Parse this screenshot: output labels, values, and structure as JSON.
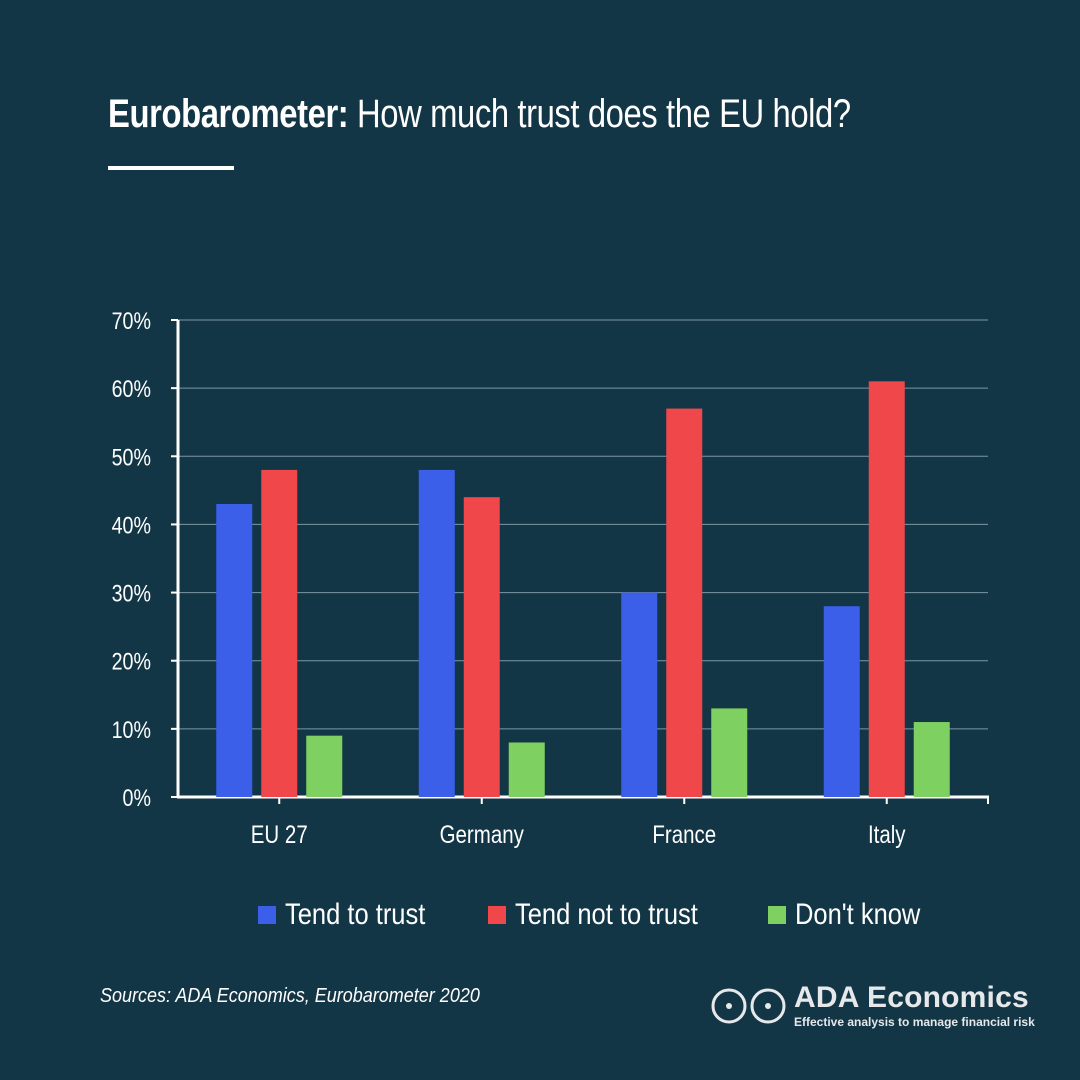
{
  "header": {
    "title_bold": "Eurobarometer:",
    "title_rest": " How much trust does the EU hold?"
  },
  "chart_data": {
    "type": "bar",
    "categories": [
      "EU 27",
      "Germany",
      "France",
      "Italy"
    ],
    "series": [
      {
        "name": "Tend to trust",
        "color": "#3b5fe8",
        "values": [
          43,
          48,
          30,
          28
        ]
      },
      {
        "name": "Tend not to trust",
        "color": "#f0474a",
        "values": [
          48,
          44,
          57,
          61
        ]
      },
      {
        "name": "Don't know",
        "color": "#7ed160",
        "values": [
          9,
          8,
          13,
          11
        ]
      }
    ],
    "yticks": [
      "0%",
      "10%",
      "20%",
      "30%",
      "40%",
      "50%",
      "60%",
      "70%"
    ],
    "ylim": [
      0,
      70
    ],
    "grid": true,
    "legend": "bottom"
  },
  "legend": {
    "items": [
      {
        "label": "Tend to trust",
        "color": "#3b5fe8"
      },
      {
        "label": "Tend not to trust",
        "color": "#f0474a"
      },
      {
        "label": "Don't know",
        "color": "#7ed160"
      }
    ]
  },
  "footer": {
    "source": "Sources: ADA Economics, Eurobarometer 2020",
    "brand_name": "ADA Economics",
    "brand_tagline": "Effective analysis to manage financial risk"
  },
  "colors": {
    "background": "#133646",
    "gridline": "#7d96a3",
    "axis": "#ffffff"
  }
}
